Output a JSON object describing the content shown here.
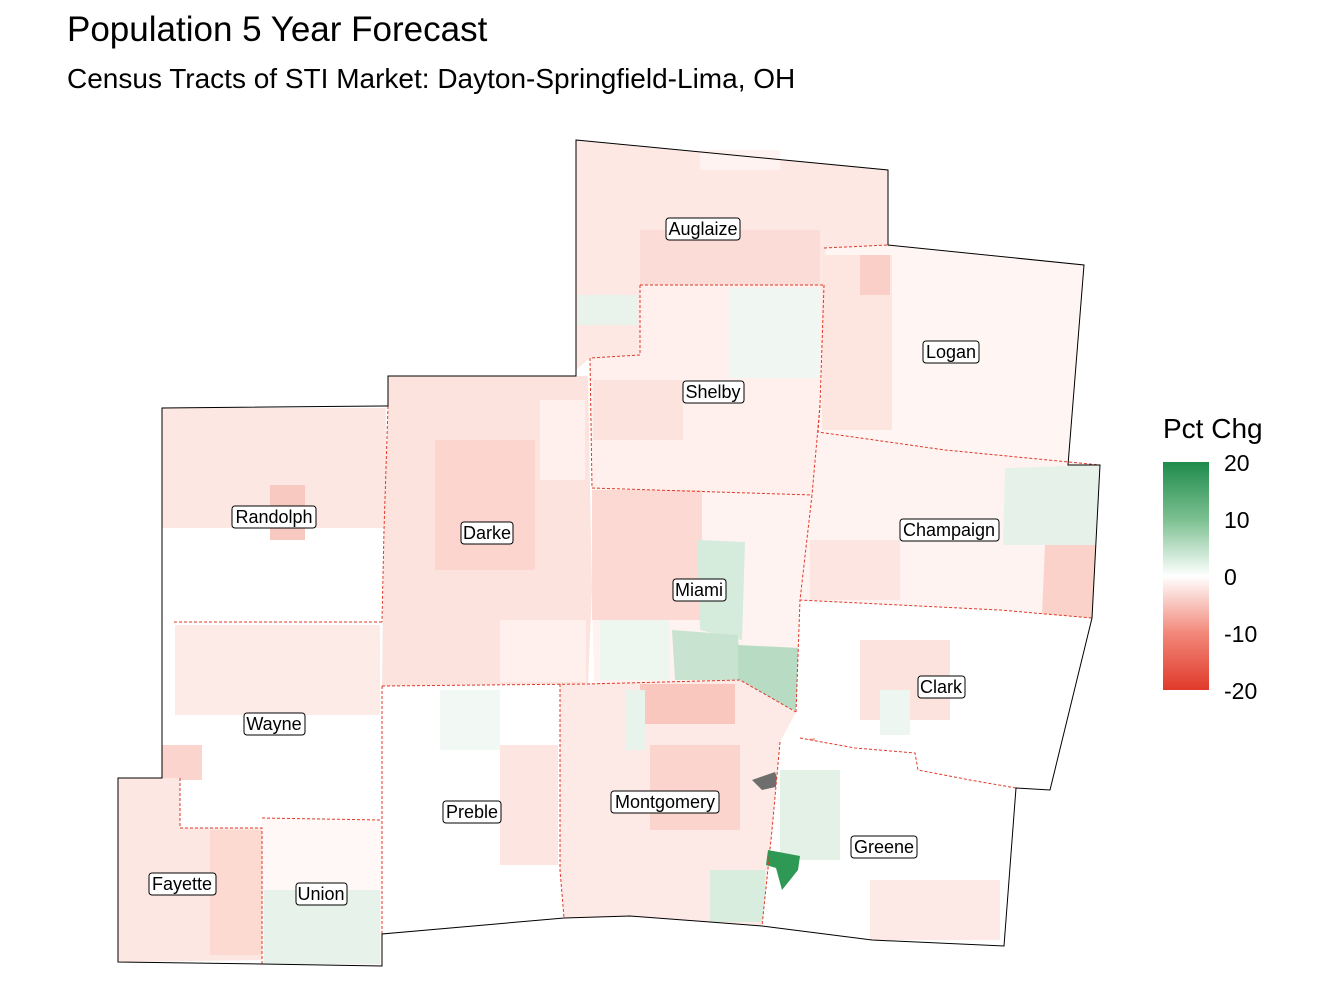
{
  "title": "Population 5 Year Forecast",
  "subtitle": "Census Tracts of STI Market: Dayton-Springfield-Lima, OH",
  "legend": {
    "title": "Pct Chg",
    "ticks": [
      "20",
      "10",
      "0",
      "-10",
      "-20"
    ],
    "range": [
      -20,
      20
    ],
    "colors": {
      "high": "#1e8b4b",
      "mid": "#ffffff",
      "low": "#e03a2a"
    }
  },
  "counties": [
    {
      "name": "Auglaize",
      "pct_chg": -3
    },
    {
      "name": "Shelby",
      "pct_chg": -2
    },
    {
      "name": "Logan",
      "pct_chg": -1
    },
    {
      "name": "Randolph",
      "pct_chg": -3
    },
    {
      "name": "Darke",
      "pct_chg": -5
    },
    {
      "name": "Miami",
      "pct_chg": 2
    },
    {
      "name": "Champaign",
      "pct_chg": -2
    },
    {
      "name": "Clark",
      "pct_chg": -2
    },
    {
      "name": "Wayne",
      "pct_chg": -2
    },
    {
      "name": "Preble",
      "pct_chg": -1
    },
    {
      "name": "Montgomery",
      "pct_chg": -3
    },
    {
      "name": "Greene",
      "pct_chg": -2
    },
    {
      "name": "Fayette",
      "pct_chg": -5
    },
    {
      "name": "Union",
      "pct_chg": 2
    }
  ]
}
